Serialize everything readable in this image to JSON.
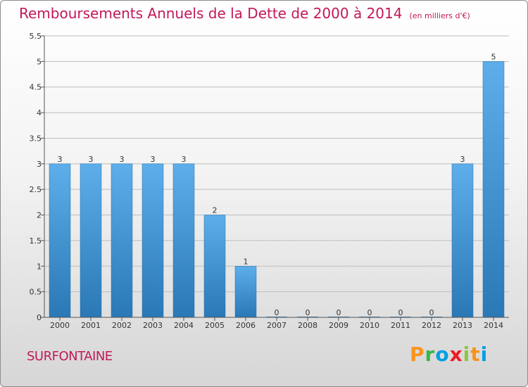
{
  "header": {
    "title": "Remboursements Annuels de la Dette de 2000 à 2014",
    "subtitle": "(en milliers d'€)"
  },
  "footer": {
    "commune": "SURFONTAINE",
    "brand_letters": [
      "P",
      "r",
      "o",
      "x",
      "i",
      "t",
      "i"
    ],
    "brand_colors": [
      "#f7941d",
      "#39b54a",
      "#00a0e3",
      "#ed1c24",
      "#8dc63f",
      "#f7941d",
      "#00a0e3"
    ]
  },
  "colors": {
    "bar_light": "#5daeea",
    "bar_dark": "#2a78b6",
    "title": "#c2185b",
    "grid": "#bdbdbd"
  },
  "chart_data": {
    "type": "bar",
    "title": "Remboursements Annuels de la Dette de 2000 à 2014",
    "subtitle": "(en milliers d'€)",
    "xlabel": "",
    "ylabel": "",
    "categories": [
      "2000",
      "2001",
      "2002",
      "2003",
      "2004",
      "2005",
      "2006",
      "2007",
      "2008",
      "2009",
      "2010",
      "2011",
      "2012",
      "2013",
      "2014"
    ],
    "values": [
      3,
      3,
      3,
      3,
      3,
      2,
      1,
      0,
      0,
      0,
      0,
      0,
      0,
      3,
      5
    ],
    "data_labels": [
      "3",
      "3",
      "3",
      "3",
      "3",
      "2",
      "1",
      "0",
      "0",
      "0",
      "0",
      "0",
      "0",
      "3",
      "5"
    ],
    "ylim": [
      0,
      5.5
    ],
    "yticks": [
      0,
      0.5,
      1,
      1.5,
      2,
      2.5,
      3,
      3.5,
      4,
      4.5,
      5,
      5.5
    ],
    "ytick_labels": [
      "0",
      "0.5",
      "1",
      "1.5",
      "2",
      "2.5",
      "3",
      "3.5",
      "4",
      "4.5",
      "5",
      "5.5"
    ],
    "grid": true,
    "legend": "none"
  }
}
